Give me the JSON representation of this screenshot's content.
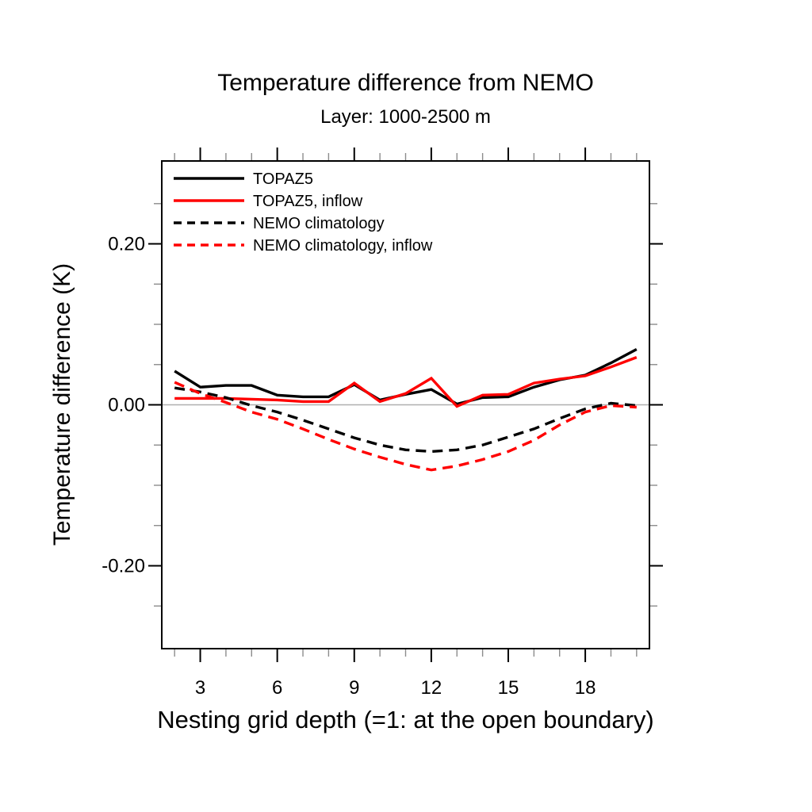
{
  "title": "Temperature difference from NEMO",
  "subtitle": "Layer: 1000-2500 m",
  "xlabel": "Nesting grid depth (=1: at the open boundary)",
  "ylabel": "Temperature difference (K)",
  "colors": {
    "black_series": "#000000",
    "red_series": "#ff0000",
    "zero_line": "#b0b0b0",
    "frame": "#000000",
    "minor_tick": "#8c8c8c"
  },
  "chart_data": {
    "type": "line",
    "x": [
      2,
      3,
      4,
      5,
      6,
      7,
      8,
      9,
      10,
      11,
      12,
      13,
      14,
      15,
      16,
      17,
      18,
      19,
      20
    ],
    "series": [
      {
        "name": "TOPAZ5",
        "color": "#000000",
        "style": "solid",
        "values": [
          0.042,
          0.022,
          0.024,
          0.024,
          0.012,
          0.01,
          0.01,
          0.025,
          0.006,
          0.013,
          0.019,
          0.001,
          0.009,
          0.01,
          0.022,
          0.031,
          0.037,
          0.052,
          0.069
        ]
      },
      {
        "name": "TOPAZ5, inflow",
        "color": "#ff0000",
        "style": "solid",
        "values": [
          0.008,
          0.008,
          0.008,
          0.007,
          0.006,
          0.004,
          0.004,
          0.027,
          0.004,
          0.014,
          0.033,
          -0.002,
          0.012,
          0.013,
          0.027,
          0.032,
          0.036,
          0.047,
          0.059
        ]
      },
      {
        "name": "NEMO climatology",
        "color": "#000000",
        "style": "dashed",
        "values": [
          0.021,
          0.016,
          0.009,
          -0.001,
          -0.009,
          -0.019,
          -0.03,
          -0.041,
          -0.05,
          -0.056,
          -0.058,
          -0.056,
          -0.05,
          -0.04,
          -0.03,
          -0.017,
          -0.005,
          0.002,
          -0.001
        ]
      },
      {
        "name": "NEMO climatology, inflow",
        "color": "#ff0000",
        "style": "dashed",
        "values": [
          0.028,
          0.014,
          0.003,
          -0.009,
          -0.018,
          -0.03,
          -0.043,
          -0.055,
          -0.065,
          -0.074,
          -0.081,
          -0.076,
          -0.068,
          -0.058,
          -0.044,
          -0.025,
          -0.009,
          -0.001,
          -0.003
        ]
      }
    ],
    "xlim": [
      1.5,
      20.5
    ],
    "ylim": [
      -0.303,
      0.303
    ],
    "x_major_ticks": [
      3,
      6,
      9,
      12,
      15,
      18
    ],
    "x_tick_labels": [
      "3",
      "6",
      "9",
      "12",
      "15",
      "18"
    ],
    "x_minor_ticks": [
      2,
      4,
      5,
      7,
      8,
      10,
      11,
      13,
      14,
      16,
      17,
      19,
      20
    ],
    "y_major_ticks": [
      0.2,
      0.0,
      -0.2
    ],
    "y_tick_labels": [
      "0.20",
      "0.00",
      "-0.20"
    ],
    "y_minor_ticks": [
      0.25,
      0.15,
      0.1,
      0.05,
      -0.05,
      -0.1,
      -0.15,
      -0.25
    ],
    "zero_line": true,
    "grid": false,
    "legend_position": "top-left-inside"
  }
}
